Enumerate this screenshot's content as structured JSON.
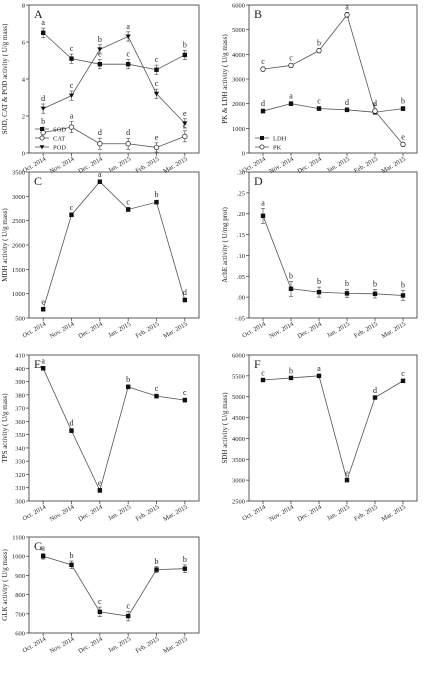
{
  "x_categories": [
    "Oct. 2014",
    "Nov. 2014",
    "Dec. 2014",
    "Jan. 2015",
    "Feb. 2015",
    "Mar. 2015"
  ],
  "chart_data": [
    {
      "panel": "A",
      "type": "line",
      "ylabel": "SOD, CAT & POD activity ( U/g mass)",
      "ylim": [
        0,
        8
      ],
      "yticks": [
        0,
        2,
        4,
        6,
        8
      ],
      "legend": "bottom-left",
      "series": [
        {
          "name": "SOD",
          "marker": "square",
          "values": [
            6.5,
            5.1,
            4.8,
            4.8,
            4.5,
            5.3
          ],
          "errors": [
            0.25,
            0.25,
            0.25,
            0.25,
            0.25,
            0.25
          ],
          "letters": [
            "a",
            "c",
            "c",
            "c",
            "c",
            "b"
          ]
        },
        {
          "name": "CAT",
          "marker": "circle",
          "values": [
            1.1,
            1.4,
            0.5,
            0.5,
            0.3,
            0.9
          ],
          "errors": [
            0.3,
            0.3,
            0.3,
            0.3,
            0.25,
            0.3
          ],
          "letters": [
            "b",
            "a",
            "d",
            "d",
            "e",
            "c"
          ]
        },
        {
          "name": "POD",
          "marker": "triangle",
          "values": [
            2.4,
            3.1,
            5.6,
            6.3,
            3.2,
            1.6
          ],
          "errors": [
            0.25,
            0.25,
            0.25,
            0.25,
            0.25,
            0.25
          ],
          "letters": [
            "d",
            "c",
            "b",
            "a",
            "c",
            "e"
          ]
        }
      ]
    },
    {
      "panel": "B",
      "type": "line",
      "ylabel": "PK & LDH activity ( U/g mass)",
      "ylim": [
        0,
        6000
      ],
      "yticks": [
        0,
        1000,
        2000,
        3000,
        4000,
        5000,
        6000
      ],
      "legend": "bottom-left",
      "series": [
        {
          "name": "LDH",
          "marker": "square",
          "values": [
            1700,
            2000,
            1800,
            1750,
            1650,
            1800
          ],
          "errors": [
            80,
            80,
            80,
            80,
            80,
            80
          ],
          "letters": [
            "d",
            "a",
            "c",
            "d",
            "e",
            "b"
          ]
        },
        {
          "name": "PK",
          "marker": "circle",
          "values": [
            3400,
            3550,
            4150,
            5600,
            1700,
            350
          ],
          "errors": [
            80,
            80,
            80,
            100,
            80,
            80
          ],
          "letters": [
            "c",
            "c",
            "b",
            "a",
            "d",
            "e"
          ]
        }
      ]
    },
    {
      "panel": "C",
      "type": "line",
      "ylabel": "MDH activity ( U/g mass)",
      "ylim": [
        500,
        3500
      ],
      "yticks": [
        500,
        1000,
        1500,
        2000,
        2500,
        3000,
        3500
      ],
      "series": [
        {
          "name": "",
          "marker": "square",
          "values": [
            680,
            2620,
            3300,
            2730,
            2880,
            870
          ],
          "errors": [
            40,
            40,
            40,
            40,
            40,
            40
          ],
          "letters": [
            "e",
            "c",
            "a",
            "c",
            "b",
            "d"
          ]
        }
      ]
    },
    {
      "panel": "D",
      "type": "line",
      "ylabel": "AchE activity ( U/mg prot)",
      "ylim": [
        -0.05,
        0.3
      ],
      "yticks": [
        -0.05,
        0.0,
        0.05,
        0.1,
        0.15,
        0.2,
        0.25,
        0.3
      ],
      "series": [
        {
          "name": "",
          "marker": "square",
          "values": [
            0.195,
            0.02,
            0.012,
            0.009,
            0.008,
            0.004
          ],
          "errors": [
            0.018,
            0.018,
            0.012,
            0.01,
            0.01,
            0.012
          ],
          "letters": [
            "a",
            "b",
            "b",
            "b",
            "b",
            "b"
          ]
        }
      ]
    },
    {
      "panel": "E",
      "type": "line",
      "ylabel": "TPS activity ( U/g mass)",
      "ylim": [
        300,
        410
      ],
      "yticks": [
        300,
        310,
        320,
        330,
        340,
        350,
        360,
        370,
        380,
        390,
        400,
        410
      ],
      "series": [
        {
          "name": "",
          "marker": "square",
          "values": [
            400,
            353,
            308,
            386,
            379,
            376
          ],
          "errors": [
            1.5,
            1.5,
            1.5,
            1.5,
            1.5,
            1.5
          ],
          "letters": [
            "a",
            "d",
            "e",
            "b",
            "c",
            "c"
          ]
        }
      ]
    },
    {
      "panel": "F",
      "type": "line",
      "ylabel": "SDH activity ( U/g mass)",
      "ylim": [
        2500,
        6000
      ],
      "yticks": [
        2500,
        3000,
        3500,
        4000,
        4500,
        5000,
        5500,
        6000
      ],
      "series": [
        {
          "name": "",
          "marker": "square",
          "values": [
            5400,
            5450,
            5500,
            3000,
            4980,
            5380
          ],
          "errors": [
            40,
            40,
            40,
            40,
            40,
            40
          ],
          "letters": [
            "c",
            "b",
            "a",
            "e",
            "d",
            "c"
          ]
        }
      ]
    },
    {
      "panel": "G",
      "type": "line",
      "ylabel": "GLK activity ( U/g mass)",
      "ylim": [
        600,
        1100
      ],
      "yticks": [
        600,
        700,
        800,
        900,
        1000,
        1100
      ],
      "series": [
        {
          "name": "",
          "marker": "square",
          "values": [
            1000,
            955,
            710,
            688,
            930,
            935
          ],
          "errors": [
            15,
            20,
            25,
            25,
            15,
            20
          ],
          "letters": [
            "a",
            "b",
            "c",
            "c",
            "b",
            "b"
          ]
        }
      ]
    }
  ]
}
